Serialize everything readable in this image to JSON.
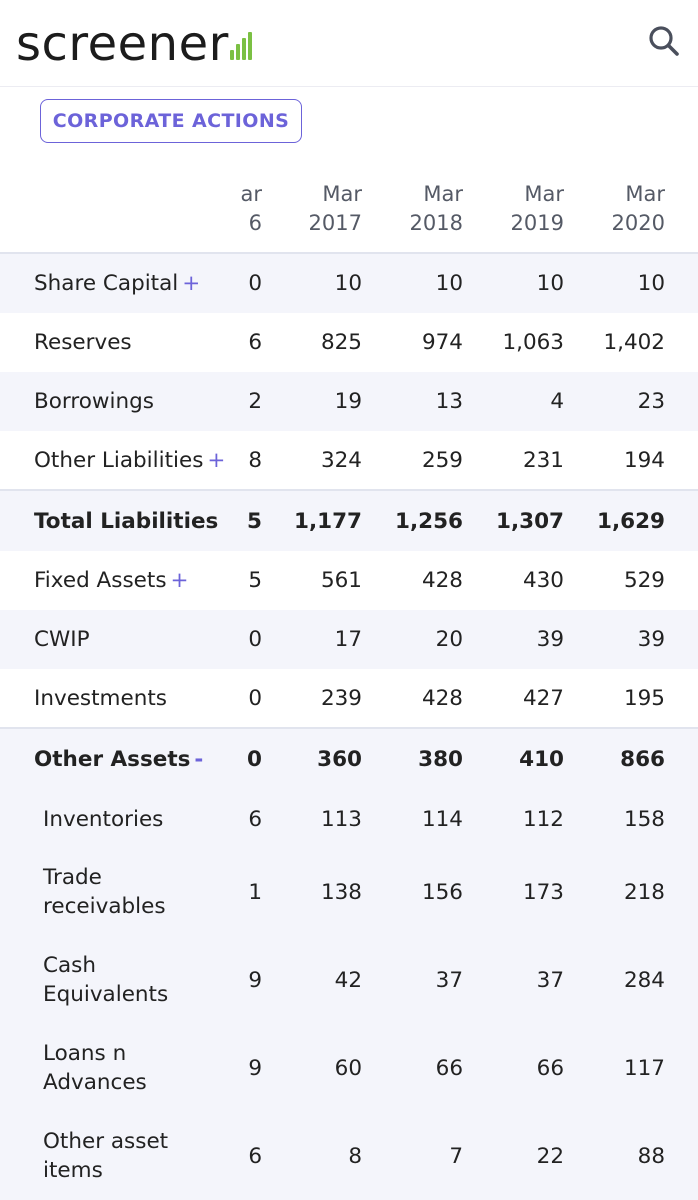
{
  "brand": {
    "name": "screener",
    "accent": "#7bc043",
    "link_color": "#6c63d9"
  },
  "header": {
    "search_icon": "search-icon"
  },
  "actions": {
    "corporate_actions_label": "CORPORATE ACTIONS"
  },
  "table": {
    "columns": [
      {
        "line1": "ar",
        "line2": "6"
      },
      {
        "line1": "Mar",
        "line2": "2017"
      },
      {
        "line1": "Mar",
        "line2": "2018"
      },
      {
        "line1": "Mar",
        "line2": "2019"
      },
      {
        "line1": "Mar",
        "line2": "2020"
      }
    ],
    "rows": [
      {
        "label": "Share Capital",
        "toggle": "+",
        "values": [
          "0",
          "10",
          "10",
          "10",
          "10"
        ]
      },
      {
        "label": "Reserves",
        "toggle": "",
        "values": [
          "6",
          "825",
          "974",
          "1,063",
          "1,402"
        ]
      },
      {
        "label": "Borrowings",
        "toggle": "",
        "values": [
          "2",
          "19",
          "13",
          "4",
          "23"
        ]
      },
      {
        "label": "Other Liabilities",
        "toggle": "+",
        "values": [
          "8",
          "324",
          "259",
          "231",
          "194"
        ]
      },
      {
        "label": "Total Liabilities",
        "toggle": "",
        "values": [
          "5",
          "1,177",
          "1,256",
          "1,307",
          "1,629"
        ]
      },
      {
        "label": "Fixed Assets",
        "toggle": "+",
        "values": [
          "5",
          "561",
          "428",
          "430",
          "529"
        ]
      },
      {
        "label": "CWIP",
        "toggle": "",
        "values": [
          "0",
          "17",
          "20",
          "39",
          "39"
        ]
      },
      {
        "label": "Investments",
        "toggle": "",
        "values": [
          "0",
          "239",
          "428",
          "427",
          "195"
        ]
      },
      {
        "label": "Other Assets",
        "toggle": "-",
        "values": [
          "0",
          "360",
          "380",
          "410",
          "866"
        ]
      },
      {
        "label": "Inventories",
        "toggle": "",
        "values": [
          "6",
          "113",
          "114",
          "112",
          "158"
        ]
      },
      {
        "label": "Trade receivables",
        "toggle": "",
        "values": [
          "1",
          "138",
          "156",
          "173",
          "218"
        ]
      },
      {
        "label": "Cash Equivalents",
        "toggle": "",
        "values": [
          "9",
          "42",
          "37",
          "37",
          "284"
        ]
      },
      {
        "label": "Loans n Advances",
        "toggle": "",
        "values": [
          "9",
          "60",
          "66",
          "66",
          "117"
        ]
      },
      {
        "label": "Other asset items",
        "toggle": "",
        "values": [
          "6",
          "8",
          "7",
          "22",
          "88"
        ]
      }
    ]
  }
}
